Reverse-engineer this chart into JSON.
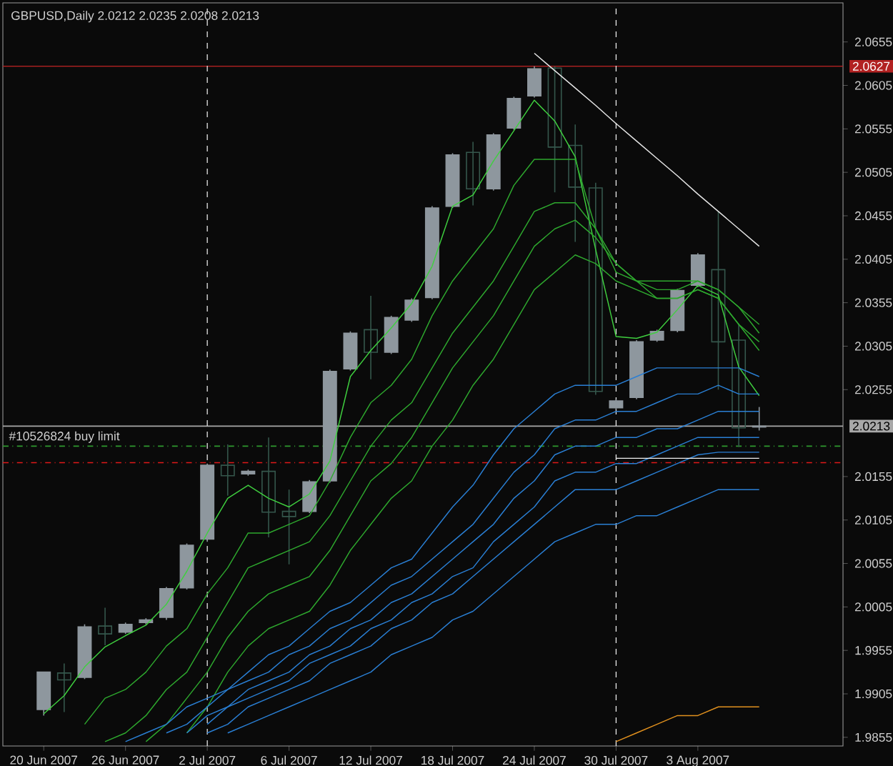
{
  "chart_data": {
    "type": "candlestick",
    "title": "GBPUSD,Daily  2.0212 2.0235 2.0208 2.0213",
    "categories": [
      "20 Jun 2007",
      null,
      null,
      null,
      "26 Jun 2007",
      null,
      null,
      null,
      "2 Jul 2007",
      null,
      null,
      null,
      "6 Jul 2007",
      null,
      null,
      null,
      "12 Jul 2007",
      null,
      null,
      null,
      "18 Jul 2007",
      null,
      null,
      null,
      "24 Jul 2007",
      null,
      null,
      null,
      "30 Jul 2007",
      null,
      null,
      null,
      "3 Aug 2007",
      null,
      null,
      null
    ],
    "ohlc": [
      [
        1.9887,
        1.993,
        1.988,
        1.993
      ],
      [
        1.9929,
        1.994,
        1.9884,
        1.9921
      ],
      [
        1.9924,
        1.9985,
        1.9922,
        1.9982
      ],
      [
        1.9983,
        2.0004,
        1.9961,
        1.9974
      ],
      [
        1.9976,
        1.9987,
        1.9974,
        1.9985
      ],
      [
        1.9987,
        1.9992,
        1.9985,
        1.999
      ],
      [
        1.9993,
        2.0028,
        1.999,
        2.0026
      ],
      [
        2.0027,
        2.0078,
        2.0025,
        2.0076
      ],
      [
        2.0083,
        2.017,
        2.008,
        2.0168
      ],
      [
        2.0168,
        2.0192,
        2.0133,
        2.0156
      ],
      [
        2.0158,
        2.0163,
        2.0156,
        2.0161
      ],
      [
        2.0161,
        2.02,
        2.0085,
        2.0114
      ],
      [
        2.0115,
        2.014,
        2.0054,
        2.0109
      ],
      [
        2.0115,
        2.0151,
        2.0113,
        2.0149
      ],
      [
        2.015,
        2.0278,
        2.0148,
        2.0276
      ],
      [
        2.0279,
        2.0322,
        2.0277,
        2.032
      ],
      [
        2.0324,
        2.0363,
        2.0267,
        2.0298
      ],
      [
        2.0298,
        2.034,
        2.0296,
        2.0338
      ],
      [
        2.0335,
        2.036,
        2.0333,
        2.0358
      ],
      [
        2.0361,
        2.0466,
        2.0359,
        2.0464
      ],
      [
        2.0466,
        2.0527,
        2.0464,
        2.0525
      ],
      [
        2.0528,
        2.054,
        2.0467,
        2.0486
      ],
      [
        2.0486,
        2.055,
        2.0484,
        2.0548
      ],
      [
        2.0556,
        2.0592,
        2.0554,
        2.059
      ],
      [
        2.0593,
        2.0627,
        2.0591,
        2.0624
      ],
      [
        2.0625,
        2.0627,
        2.0482,
        2.0534
      ],
      [
        2.0536,
        2.056,
        2.0425,
        2.0488
      ],
      [
        2.0487,
        2.0493,
        2.0249,
        2.0253
      ],
      [
        2.0234,
        2.0244,
        2.0232,
        2.0242
      ],
      [
        2.0246,
        2.0312,
        2.0244,
        2.031
      ],
      [
        2.0312,
        2.0324,
        2.031,
        2.0322
      ],
      [
        2.0323,
        2.0371,
        2.0321,
        2.0369
      ],
      [
        2.0375,
        2.0412,
        2.0373,
        2.041
      ],
      [
        2.0393,
        2.046,
        2.0255,
        2.031
      ],
      [
        2.0312,
        2.0331,
        2.0189,
        2.0211
      ],
      [
        2.0212,
        2.0235,
        2.0208,
        2.0213
      ]
    ],
    "colors": [
      "#8e979e",
      "#35574c",
      "#8e979e",
      "#35574c",
      "#8e979e",
      "#8e979e",
      "#8e979e",
      "#8e979e",
      "#8e979e",
      "#35574c",
      "#8e979e",
      "#35574c",
      "#35574c",
      "#8e979e",
      "#8e979e",
      "#8e979e",
      "#35574c",
      "#8e979e",
      "#8e979e",
      "#8e979e",
      "#8e979e",
      "#35574c",
      "#8e979e",
      "#8e979e",
      "#8e979e",
      "#35574c",
      "#35574c",
      "#35574c",
      "#8e979e",
      "#8e979e",
      "#8e979e",
      "#8e979e",
      "#8e979e",
      "#35574c",
      "#35574c",
      "#8e979e"
    ],
    "series": [
      {
        "type": "line",
        "color": "#3fcf3f",
        "values": [
          1.9882,
          1.9903,
          1.9936,
          1.9959,
          1.9972,
          1.9984,
          2.0008,
          2.0046,
          2.009,
          2.013,
          2.0145,
          2.013,
          2.012,
          2.0135,
          2.0173,
          2.027,
          2.03,
          2.0326,
          2.0354,
          2.0397,
          2.0466,
          2.0479,
          2.0518,
          2.0553,
          2.0588,
          2.0564,
          2.0523,
          2.0416,
          2.0316,
          2.0314,
          2.0321,
          2.0347,
          2.0375,
          2.0364,
          2.0281,
          2.0248
        ]
      },
      {
        "type": "line",
        "color": "#2ea82e",
        "values": [
          null,
          null,
          1.987,
          1.99,
          1.991,
          1.993,
          1.996,
          1.998,
          2.002,
          2.005,
          2.009,
          2.009,
          2.01,
          2.011,
          2.015,
          2.02,
          2.024,
          2.026,
          2.029,
          2.034,
          2.038,
          2.041,
          2.044,
          2.049,
          2.052,
          2.052,
          2.052,
          2.044,
          2.04,
          2.038,
          2.038,
          2.038,
          2.038,
          2.037,
          2.035,
          2.033
        ]
      },
      {
        "type": "line",
        "color": "#2ea82e",
        "values": [
          null,
          null,
          null,
          1.985,
          1.986,
          1.988,
          1.991,
          1.993,
          1.997,
          2.001,
          2.005,
          2.006,
          2.007,
          2.008,
          2.011,
          2.015,
          2.019,
          2.022,
          2.024,
          2.028,
          2.032,
          2.035,
          2.038,
          2.042,
          2.046,
          2.047,
          2.047,
          2.044,
          2.039,
          2.038,
          2.037,
          2.037,
          2.038,
          2.037,
          2.035,
          2.032
        ]
      },
      {
        "type": "line",
        "color": "#2ea82e",
        "values": [
          null,
          null,
          null,
          null,
          null,
          1.985,
          1.987,
          1.99,
          1.993,
          1.997,
          2.0,
          2.002,
          2.003,
          2.004,
          2.007,
          2.011,
          2.015,
          2.017,
          2.02,
          2.024,
          2.028,
          2.031,
          2.034,
          2.038,
          2.042,
          2.044,
          2.045,
          2.043,
          2.04,
          2.038,
          2.036,
          2.036,
          2.037,
          2.036,
          2.033,
          2.031
        ]
      },
      {
        "type": "line",
        "color": "#2ea82e",
        "values": [
          null,
          null,
          null,
          null,
          null,
          null,
          null,
          1.986,
          1.989,
          1.993,
          1.996,
          1.998,
          1.999,
          2.0,
          2.003,
          2.007,
          2.01,
          2.013,
          2.015,
          2.019,
          2.022,
          2.026,
          2.029,
          2.033,
          2.037,
          2.039,
          2.041,
          2.04,
          2.038,
          2.037,
          2.036,
          2.036,
          2.037,
          2.036,
          2.033,
          2.03
        ]
      },
      {
        "type": "line",
        "color": "#2a7fd4",
        "values": [
          null,
          null,
          null,
          null,
          1.985,
          1.986,
          1.987,
          1.989,
          1.99,
          1.991,
          1.993,
          1.995,
          1.996,
          1.998,
          2.0,
          2.001,
          2.003,
          2.005,
          2.006,
          2.009,
          2.012,
          2.0145,
          2.018,
          2.021,
          2.023,
          2.025,
          2.026,
          2.026,
          2.026,
          2.027,
          2.028,
          2.028,
          2.028,
          2.028,
          2.028,
          2.027
        ]
      },
      {
        "type": "line",
        "color": "#2a7fd4",
        "values": [
          null,
          null,
          null,
          null,
          null,
          null,
          1.986,
          1.987,
          1.989,
          1.991,
          1.992,
          1.993,
          1.995,
          1.996,
          1.998,
          1.999,
          2.001,
          2.003,
          2.004,
          2.006,
          2.008,
          2.01,
          2.013,
          2.016,
          2.018,
          2.021,
          2.022,
          2.022,
          2.023,
          2.023,
          2.024,
          2.025,
          2.025,
          2.026,
          2.025,
          2.025
        ]
      },
      {
        "type": "line",
        "color": "#2a7fd4",
        "values": [
          null,
          null,
          null,
          null,
          null,
          null,
          null,
          1.986,
          1.988,
          1.989,
          1.991,
          1.992,
          1.993,
          1.995,
          1.996,
          1.998,
          1.999,
          2.001,
          2.002,
          2.004,
          2.006,
          2.008,
          2.01,
          2.013,
          2.015,
          2.018,
          2.019,
          2.019,
          2.02,
          2.02,
          2.021,
          2.021,
          2.022,
          2.023,
          2.023,
          2.023
        ]
      },
      {
        "type": "line",
        "color": "#2a7fd4",
        "values": [
          null,
          null,
          null,
          null,
          null,
          null,
          null,
          null,
          1.987,
          1.989,
          1.99,
          1.991,
          1.992,
          1.994,
          1.995,
          1.996,
          1.998,
          1.999,
          2.001,
          2.002,
          2.004,
          2.005,
          2.008,
          2.01,
          2.012,
          2.015,
          2.016,
          2.016,
          2.017,
          2.017,
          2.018,
          2.019,
          2.02,
          2.02,
          2.02,
          2.02
        ]
      },
      {
        "type": "line",
        "color": "#2a7fd4",
        "values": [
          null,
          null,
          null,
          null,
          null,
          null,
          null,
          null,
          1.986,
          1.987,
          1.989,
          1.99,
          1.991,
          1.992,
          1.994,
          1.995,
          1.996,
          1.998,
          1.999,
          2.001,
          2.002,
          2.004,
          2.006,
          2.008,
          2.01,
          2.012,
          2.014,
          2.014,
          2.014,
          2.015,
          2.016,
          2.017,
          2.018,
          2.0183,
          2.0183,
          2.0183
        ]
      },
      {
        "type": "line",
        "color": "#2a7fd4",
        "values": [
          null,
          null,
          null,
          null,
          null,
          null,
          null,
          null,
          null,
          1.986,
          1.987,
          1.988,
          1.989,
          1.99,
          1.991,
          1.992,
          1.993,
          1.995,
          1.996,
          1.997,
          1.999,
          2.0,
          2.002,
          2.004,
          2.006,
          2.008,
          2.009,
          2.01,
          2.01,
          2.011,
          2.011,
          2.012,
          2.013,
          2.014,
          2.014,
          2.014
        ]
      },
      {
        "type": "line",
        "color": "#e0901e",
        "values": [
          null,
          null,
          null,
          null,
          null,
          null,
          null,
          null,
          null,
          null,
          null,
          null,
          null,
          null,
          null,
          null,
          null,
          null,
          null,
          null,
          null,
          null,
          null,
          null,
          null,
          null,
          null,
          null,
          1.985,
          1.986,
          1.987,
          1.988,
          1.988,
          1.989,
          1.989,
          1.989
        ]
      },
      {
        "type": "line",
        "color": "#e6e6e6",
        "values": [
          null,
          null,
          null,
          null,
          null,
          null,
          null,
          null,
          null,
          null,
          null,
          null,
          null,
          null,
          null,
          null,
          null,
          null,
          null,
          null,
          null,
          null,
          null,
          null,
          2.0642,
          2.0622,
          2.0602,
          2.0582,
          2.0561,
          2.0541,
          2.0521,
          2.0501,
          2.048,
          2.046,
          2.044,
          2.042
        ]
      },
      {
        "type": "line",
        "color": "#f2f2f2",
        "values": [
          null,
          null,
          null,
          null,
          null,
          null,
          null,
          null,
          null,
          null,
          null,
          null,
          null,
          null,
          null,
          null,
          null,
          null,
          null,
          null,
          null,
          null,
          null,
          null,
          null,
          null,
          null,
          null,
          2.0176,
          2.0176,
          2.0176,
          2.0176,
          2.0176,
          2.0176,
          2.0176,
          2.0176
        ]
      }
    ],
    "ylim": [
      1.9845,
      2.07
    ],
    "yticks": [
      1.9855,
      1.9905,
      1.9955,
      2.0005,
      2.0055,
      2.0105,
      2.0155,
      2.0255,
      2.0305,
      2.0355,
      2.0405,
      2.0455,
      2.0505,
      2.0555,
      2.0605,
      2.0655
    ],
    "ref_lines": [
      {
        "axis": "y",
        "value": 2.0627,
        "label": "2.0627",
        "color": "#b22222",
        "line_style": "solid"
      },
      {
        "axis": "y",
        "value": 2.0213,
        "label": "2.0213",
        "color": "#a8a8a8",
        "line_style": "solid"
      },
      {
        "axis": "y",
        "value": 2.019,
        "label": "#10526824 buy limit",
        "color": "#2e9a2e",
        "line_style": "dashdot"
      },
      {
        "axis": "y",
        "value": 2.0171,
        "color": "#e01818",
        "line_style": "dashdot"
      },
      {
        "axis": "x",
        "value": "2 Jul 2007",
        "color": "#e6e6e6",
        "line_style": "dashed"
      },
      {
        "axis": "x",
        "value": "30 Jul 2007",
        "color": "#e6e6e6",
        "line_style": "dashed"
      }
    ]
  }
}
